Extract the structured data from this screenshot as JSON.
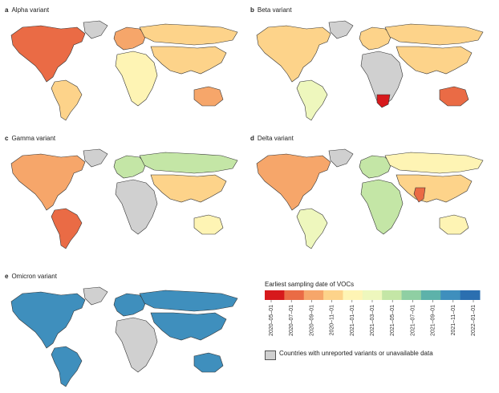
{
  "panels": [
    {
      "letter": "a",
      "title": "Alpha variant"
    },
    {
      "letter": "b",
      "title": "Beta variant"
    },
    {
      "letter": "c",
      "title": "Gamma variant"
    },
    {
      "letter": "d",
      "title": "Delta variant"
    },
    {
      "letter": "e",
      "title": "Omicron variant"
    }
  ],
  "legend": {
    "title": "Earliest sampling date of VOCs",
    "ticks": [
      "2020–05–01",
      "2020–07–01",
      "2020–09–01",
      "2020–11–01",
      "2021–01–01",
      "2021–03–01",
      "2021–05–01",
      "2021–07–01",
      "2021–09–01",
      "2021–11–01",
      "2022–01–01"
    ],
    "colors": [
      "#d7191c",
      "#ea6b45",
      "#f6a66a",
      "#fdd38a",
      "#fef4b4",
      "#eef7bd",
      "#c4e6a6",
      "#8fcfa3",
      "#5db2aa",
      "#3f8fbd",
      "#2b6fb0"
    ],
    "na_label": "Countries with unreported variants or unavailable data",
    "na_color": "#d0d0d0"
  },
  "panel_colors": {
    "alpha": {
      "na": "#ea6b45",
      "greenland": "#d0d0d0",
      "sa": "#fdd38a",
      "eu": "#f6a66a",
      "af": "#fef4b4",
      "ru": "#fdd38a",
      "as": "#fdd38a",
      "au": "#f6a66a"
    },
    "beta": {
      "na": "#fdd38a",
      "greenland": "#d0d0d0",
      "sa": "#eef7bd",
      "eu": "#fdd38a",
      "af": "#d0d0d0",
      "ru": "#fdd38a",
      "as": "#fdd38a",
      "au": "#ea6b45",
      "safrica": "#d7191c"
    },
    "gamma": {
      "na": "#f6a66a",
      "greenland": "#d0d0d0",
      "sa": "#ea6b45",
      "eu": "#c4e6a6",
      "af": "#d0d0d0",
      "ru": "#c4e6a6",
      "as": "#fdd38a",
      "au": "#fef4b4"
    },
    "delta": {
      "na": "#f6a66a",
      "greenland": "#d0d0d0",
      "sa": "#eef7bd",
      "eu": "#c4e6a6",
      "af": "#c4e6a6",
      "ru": "#fef4b4",
      "as": "#fdd38a",
      "au": "#fef4b4",
      "india": "#ea6b45"
    },
    "omicron": {
      "na": "#3f8fbd",
      "greenland": "#d0d0d0",
      "sa": "#3f8fbd",
      "eu": "#3f8fbd",
      "af": "#d0d0d0",
      "ru": "#3f8fbd",
      "as": "#3f8fbd",
      "au": "#3f8fbd"
    }
  }
}
